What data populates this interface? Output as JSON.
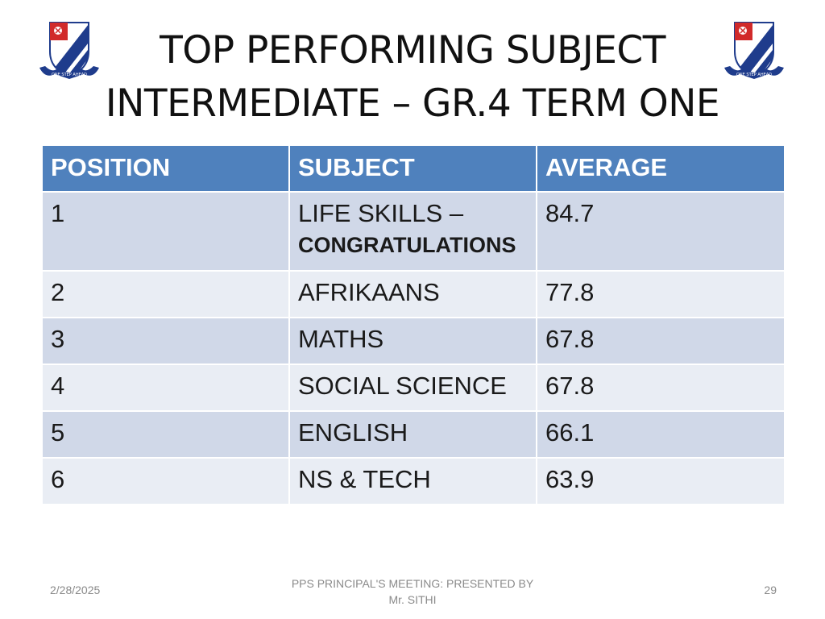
{
  "title": {
    "line1": "TOP  PERFORMING  SUBJECT",
    "line2": "INTERMEDIATE – GR.4 TERM ONE"
  },
  "crest": {
    "motto": "ONE STEP AHEAD"
  },
  "table": {
    "headers": [
      "POSITION",
      "SUBJECT",
      "AVERAGE"
    ],
    "rows": [
      {
        "position": "1",
        "subject": "LIFE  SKILLS –",
        "note": "CONGRATULATIONS",
        "average": "84.7"
      },
      {
        "position": "2",
        "subject": "AFRIKAANS",
        "average": "77.8"
      },
      {
        "position": "3",
        "subject": "MATHS",
        "average": "67.8"
      },
      {
        "position": "4",
        "subject": "SOCIAL  SCIENCE",
        "average": "67.8"
      },
      {
        "position": "5",
        "subject": "ENGLISH",
        "average": "66.1"
      },
      {
        "position": "6",
        "subject": "NS &  TECH",
        "average": "63.9"
      }
    ]
  },
  "footer": {
    "date": "2/28/2025",
    "center_line1": "PPS  PRINCIPAL'S MEETING: PRESENTED  BY",
    "center_line2": "Mr. SITHI",
    "page_number": "29"
  },
  "colors": {
    "header_bg": "#4f81bd",
    "row_odd": "#d0d8e8",
    "row_even": "#e9edf4",
    "crest_blue": "#1f3c8c",
    "crest_red": "#d12a2a"
  }
}
